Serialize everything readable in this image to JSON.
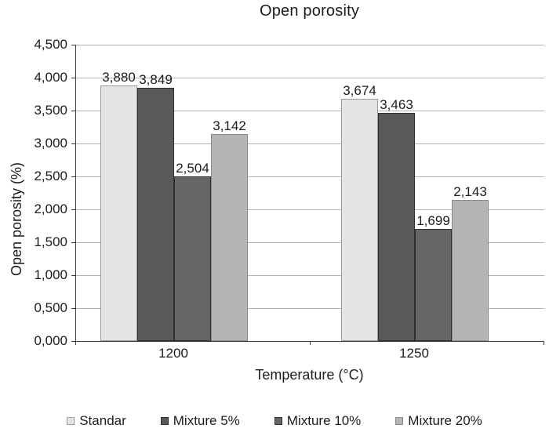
{
  "title": "Open porosity",
  "chart_data": {
    "type": "bar",
    "title": "Open porosity",
    "xlabel": "Temperature (°C)",
    "ylabel": "Open porosity (%)",
    "categories": [
      "1200",
      "1250"
    ],
    "series": [
      {
        "name": "Standar",
        "values": [
          3.88,
          3.674
        ],
        "labels": [
          "3,880",
          "3,674"
        ],
        "color": "#e4e4e4",
        "border": "#9b9b9b"
      },
      {
        "name": "Mixture 5%",
        "values": [
          3.849,
          3.463
        ],
        "labels": [
          "3,849",
          "3,463"
        ],
        "color": "#595959",
        "border": "#2e2e2e"
      },
      {
        "name": "Mixture 10%",
        "values": [
          2.504,
          1.699
        ],
        "labels": [
          "2,504",
          "1,699"
        ],
        "color": "#666666",
        "border": "#2e2e2e"
      },
      {
        "name": "Mixture 20%",
        "values": [
          3.142,
          2.143
        ],
        "labels": [
          "3,142",
          "2,143"
        ],
        "color": "#b5b5b5",
        "border": "#8a8a8a"
      }
    ],
    "ylim": [
      0,
      4.5
    ],
    "ytick_labels": [
      "4,500",
      "4,000",
      "3,500",
      "3,000",
      "2,500",
      "2,000",
      "1,500",
      "1,000",
      "0,500",
      "0,000"
    ],
    "ytick_values": [
      4.5,
      4.0,
      3.5,
      3.0,
      2.5,
      2.0,
      1.5,
      1.0,
      0.5,
      0.0
    ],
    "grid": "horizontal",
    "legend_position": "bottom"
  },
  "colors": {
    "background": "#ffffff",
    "gridline": "#b3b3b3",
    "axis": "#3f3f3f",
    "text": "#1c1c1c"
  }
}
